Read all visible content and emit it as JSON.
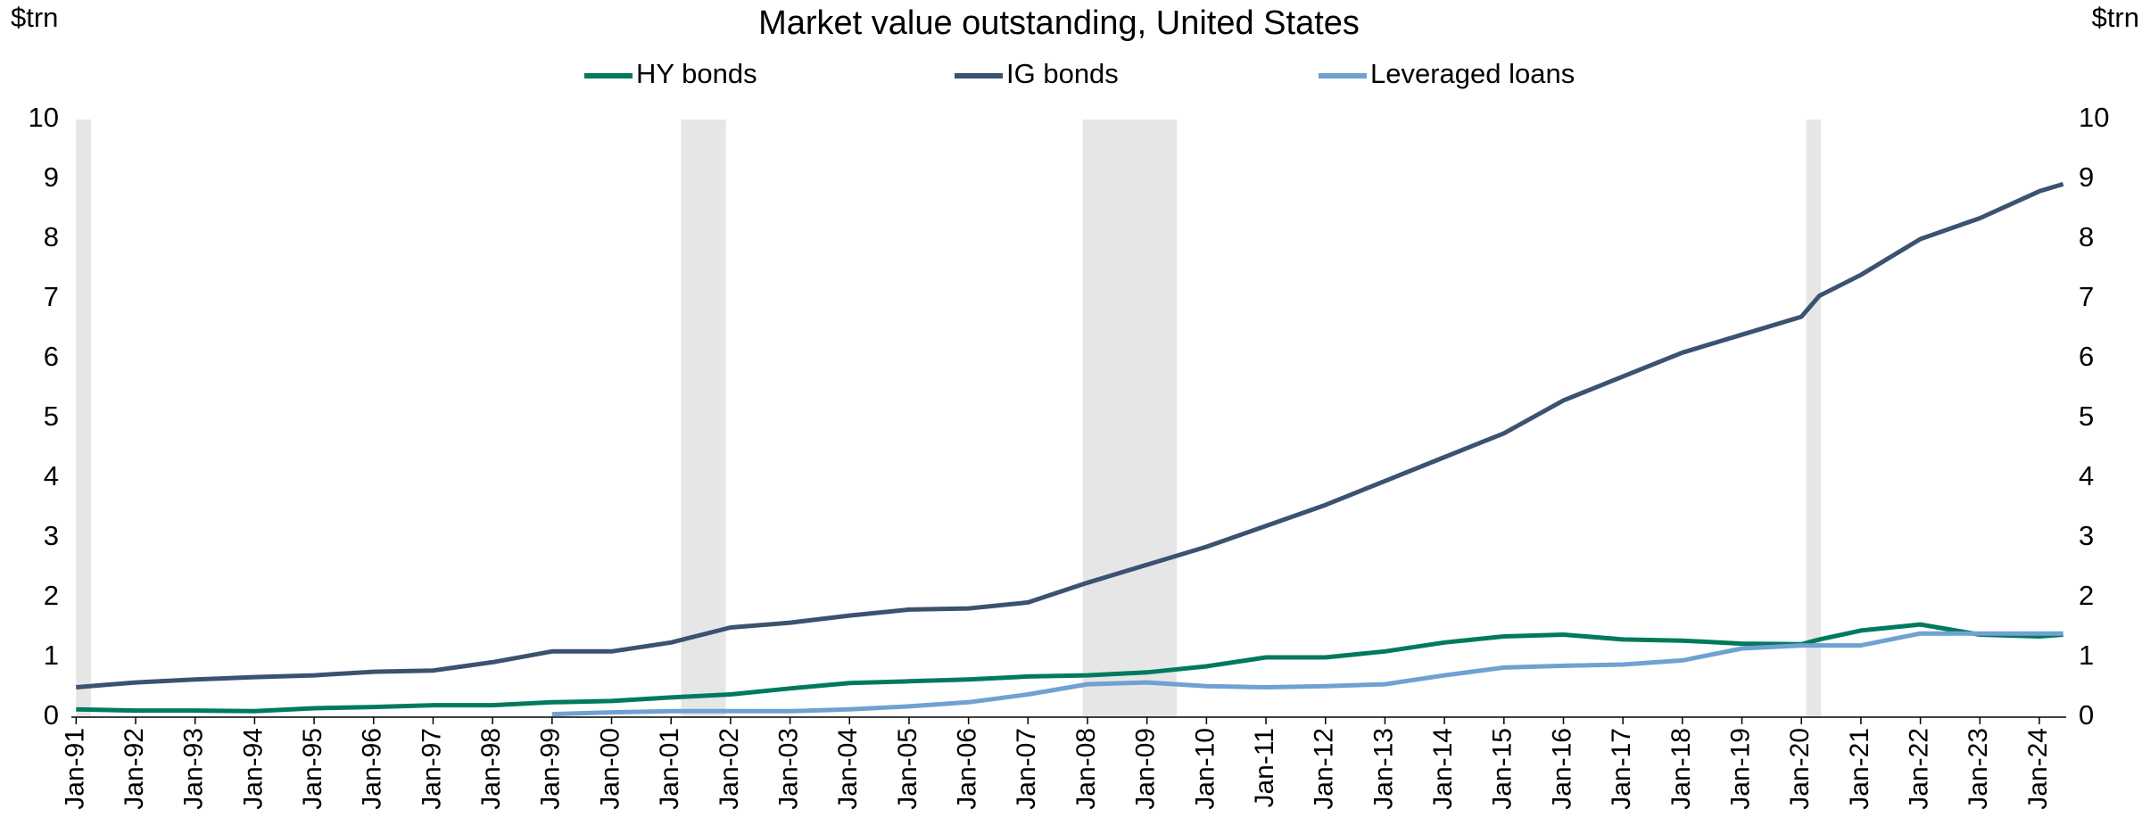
{
  "chart_data": {
    "type": "line",
    "title": "Market value outstanding, United States",
    "y_label": "$trn",
    "y2_label": "$trn",
    "x": [
      1991,
      1992,
      1993,
      1994,
      1995,
      1996,
      1997,
      1998,
      1999,
      2000,
      2001,
      2002,
      2003,
      2004,
      2005,
      2006,
      2007,
      2008,
      2009,
      2010,
      2011,
      2012,
      2013,
      2014,
      2015,
      2016,
      2017,
      2018,
      2019,
      2020,
      2020.3,
      2021,
      2022,
      2023,
      2024,
      2024.4
    ],
    "series": [
      {
        "name": "HY bonds",
        "color": "#007a5e",
        "values": [
          0.13,
          0.11,
          0.11,
          0.1,
          0.15,
          0.17,
          0.2,
          0.2,
          0.25,
          0.27,
          0.33,
          0.38,
          0.48,
          0.57,
          0.6,
          0.63,
          0.68,
          0.7,
          0.75,
          0.85,
          1.0,
          1.0,
          1.1,
          1.25,
          1.35,
          1.38,
          1.3,
          1.28,
          1.23,
          1.22,
          1.3,
          1.45,
          1.55,
          1.38,
          1.35,
          1.38
        ]
      },
      {
        "name": "IG bonds",
        "color": "#3b5270",
        "values": [
          0.5,
          0.58,
          0.63,
          0.67,
          0.7,
          0.76,
          0.78,
          0.92,
          1.1,
          1.1,
          1.25,
          1.5,
          1.58,
          1.7,
          1.8,
          1.82,
          1.92,
          2.25,
          2.55,
          2.85,
          3.2,
          3.55,
          3.95,
          4.35,
          4.75,
          5.3,
          5.7,
          6.1,
          6.4,
          6.7,
          7.05,
          7.4,
          8.0,
          8.35,
          8.8,
          8.92
        ]
      },
      {
        "name": "Leveraged loans",
        "color": "#6fa1d2",
        "values": [
          null,
          null,
          null,
          null,
          null,
          null,
          null,
          null,
          0.05,
          0.08,
          0.1,
          0.1,
          0.1,
          0.13,
          0.18,
          0.25,
          0.38,
          0.55,
          0.58,
          0.52,
          0.5,
          0.52,
          0.55,
          0.7,
          0.83,
          0.86,
          0.88,
          0.95,
          1.15,
          1.2,
          1.2,
          1.2,
          1.4,
          1.4,
          1.4,
          1.4
        ]
      }
    ],
    "shaded_periods": [
      [
        1991.0,
        1991.25
      ],
      [
        2001.17,
        2001.92
      ],
      [
        2007.92,
        2009.5
      ],
      [
        2020.08,
        2020.33
      ]
    ],
    "shade_color": "#e6e6e6",
    "xlim": [
      1990.92,
      2024.45
    ],
    "xticks": [
      {
        "value": 1991,
        "label": "Jan-91"
      },
      {
        "value": 1992,
        "label": "Jan-92"
      },
      {
        "value": 1993,
        "label": "Jan-93"
      },
      {
        "value": 1994,
        "label": "Jan-94"
      },
      {
        "value": 1995,
        "label": "Jan-95"
      },
      {
        "value": 1996,
        "label": "Jan-96"
      },
      {
        "value": 1997,
        "label": "Jan-97"
      },
      {
        "value": 1998,
        "label": "Jan-98"
      },
      {
        "value": 1999,
        "label": "Jan-99"
      },
      {
        "value": 2000,
        "label": "Jan-00"
      },
      {
        "value": 2001,
        "label": "Jan-01"
      },
      {
        "value": 2002,
        "label": "Jan-02"
      },
      {
        "value": 2003,
        "label": "Jan-03"
      },
      {
        "value": 2004,
        "label": "Jan-04"
      },
      {
        "value": 2005,
        "label": "Jan-05"
      },
      {
        "value": 2006,
        "label": "Jan-06"
      },
      {
        "value": 2007,
        "label": "Jan-07"
      },
      {
        "value": 2008,
        "label": "Jan-08"
      },
      {
        "value": 2009,
        "label": "Jan-09"
      },
      {
        "value": 2010,
        "label": "Jan-10"
      },
      {
        "value": 2011,
        "label": "Jan-11"
      },
      {
        "value": 2012,
        "label": "Jan-12"
      },
      {
        "value": 2013,
        "label": "Jan-13"
      },
      {
        "value": 2014,
        "label": "Jan-14"
      },
      {
        "value": 2015,
        "label": "Jan-15"
      },
      {
        "value": 2016,
        "label": "Jan-16"
      },
      {
        "value": 2017,
        "label": "Jan-17"
      },
      {
        "value": 2018,
        "label": "Jan-18"
      },
      {
        "value": 2019,
        "label": "Jan-19"
      },
      {
        "value": 2020,
        "label": "Jan-20"
      },
      {
        "value": 2021,
        "label": "Jan-21"
      },
      {
        "value": 2022,
        "label": "Jan-22"
      },
      {
        "value": 2023,
        "label": "Jan-23"
      },
      {
        "value": 2024,
        "label": "Jan-24"
      }
    ],
    "ylim": [
      0,
      10
    ],
    "yticks": [
      0,
      1,
      2,
      3,
      4,
      5,
      6,
      7,
      8,
      9,
      10
    ],
    "y2lim": [
      0,
      10
    ],
    "y2ticks": [
      0,
      1,
      2,
      3,
      4,
      5,
      6,
      7,
      8,
      9,
      10
    ],
    "legend": "top"
  }
}
